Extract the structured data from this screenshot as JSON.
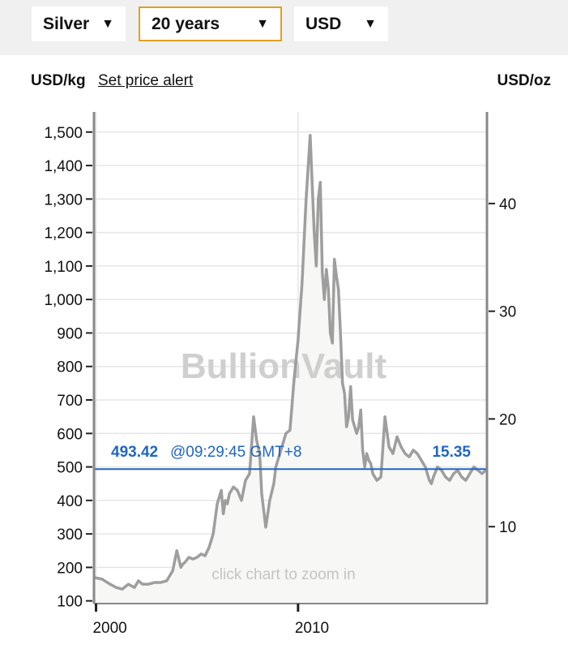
{
  "controls": {
    "metal": {
      "value": "Silver"
    },
    "period": {
      "value": "20 years"
    },
    "currency": {
      "value": "USD"
    }
  },
  "labels": {
    "left_unit": "USD/kg",
    "right_unit": "USD/oz",
    "set_alert": "Set price alert",
    "watermark": "BullionVault",
    "zoom_hint": "click chart to zoom in"
  },
  "current": {
    "price_kg": "493.42",
    "time": "@09:29:45 GMT+8",
    "price_oz": "15.35"
  },
  "colors": {
    "line": "#9e9e9e",
    "area": "#f7f7f5",
    "current": "#1f66c2",
    "dropdown_border": "#e0a020"
  },
  "chart_data": {
    "type": "line",
    "xlabel": "",
    "ylabel": "USD/kg",
    "y2label": "USD/oz",
    "xlim": [
      1999.9,
      2019.35
    ],
    "ylim": [
      92,
      1560
    ],
    "y2lim": [
      2.86,
      48.5
    ],
    "x_ticks": [
      2000,
      2010
    ],
    "y_ticks": [
      100,
      200,
      300,
      400,
      500,
      600,
      700,
      800,
      900,
      1000,
      1100,
      1200,
      1300,
      1400,
      1500
    ],
    "y_tick_labels": [
      "100",
      "200",
      "300",
      "400",
      "500",
      "600",
      "700",
      "800",
      "900",
      "1,000",
      "1,100",
      "1,200",
      "1,300",
      "1,400",
      "1,500"
    ],
    "y2_ticks": [
      10,
      20,
      30,
      40
    ],
    "current_value": 493.42,
    "series": [
      {
        "x": [
          1999.9,
          2000.3,
          2000.7,
          2001.0,
          2001.3,
          2001.6,
          2001.9,
          2002.1,
          2002.3,
          2002.6,
          2002.9,
          2003.2,
          2003.5,
          2003.8,
          2004.0,
          2004.2,
          2004.3,
          2004.4,
          2004.6,
          2004.8,
          2005.0,
          2005.2,
          2005.4,
          2005.6,
          2005.8,
          2006.0,
          2006.2,
          2006.3,
          2006.4,
          2006.5,
          2006.6,
          2006.8,
          2007.0,
          2007.2,
          2007.4,
          2007.6,
          2007.8,
          2007.95,
          2008.1,
          2008.2,
          2008.4,
          2008.6,
          2008.8,
          2008.9,
          2009.0,
          2009.2,
          2009.4,
          2009.6,
          2009.8,
          2010.0,
          2010.2,
          2010.4,
          2010.6,
          2010.8,
          2010.9,
          2011.0,
          2011.1,
          2011.2,
          2011.3,
          2011.4,
          2011.5,
          2011.6,
          2011.7,
          2011.8,
          2011.9,
          2012.0,
          2012.1,
          2012.2,
          2012.3,
          2012.4,
          2012.5,
          2012.6,
          2012.7,
          2012.8,
          2012.9,
          2013.0,
          2013.1,
          2013.2,
          2013.3,
          2013.4,
          2013.5,
          2013.6,
          2013.7,
          2013.9,
          2014.1,
          2014.3,
          2014.5,
          2014.7,
          2014.9,
          2015.1,
          2015.3,
          2015.5,
          2015.7,
          2015.9,
          2016.1,
          2016.3,
          2016.5,
          2016.6,
          2016.7,
          2016.9,
          2017.1,
          2017.3,
          2017.5,
          2017.7,
          2017.9,
          2018.1,
          2018.3,
          2018.5,
          2018.7,
          2018.9,
          2019.1,
          2019.35
        ],
        "values": [
          170,
          165,
          150,
          140,
          135,
          150,
          140,
          160,
          150,
          150,
          155,
          155,
          160,
          190,
          250,
          200,
          210,
          215,
          230,
          225,
          230,
          240,
          235,
          260,
          300,
          390,
          430,
          360,
          400,
          390,
          420,
          440,
          430,
          400,
          460,
          480,
          650,
          580,
          540,
          420,
          320,
          400,
          450,
          500,
          520,
          560,
          600,
          610,
          760,
          880,
          1050,
          1300,
          1490,
          1200,
          1100,
          1300,
          1350,
          1080,
          1000,
          1090,
          1030,
          900,
          870,
          1120,
          1070,
          1030,
          900,
          750,
          720,
          620,
          650,
          740,
          640,
          620,
          600,
          620,
          670,
          550,
          500,
          540,
          520,
          510,
          480,
          460,
          470,
          650,
          560,
          540,
          590,
          560,
          540,
          530,
          550,
          540,
          520,
          500,
          460,
          450,
          470,
          500,
          490,
          470,
          460,
          480,
          490,
          470,
          460,
          480,
          500,
          490,
          480,
          493.42
        ]
      }
    ]
  }
}
